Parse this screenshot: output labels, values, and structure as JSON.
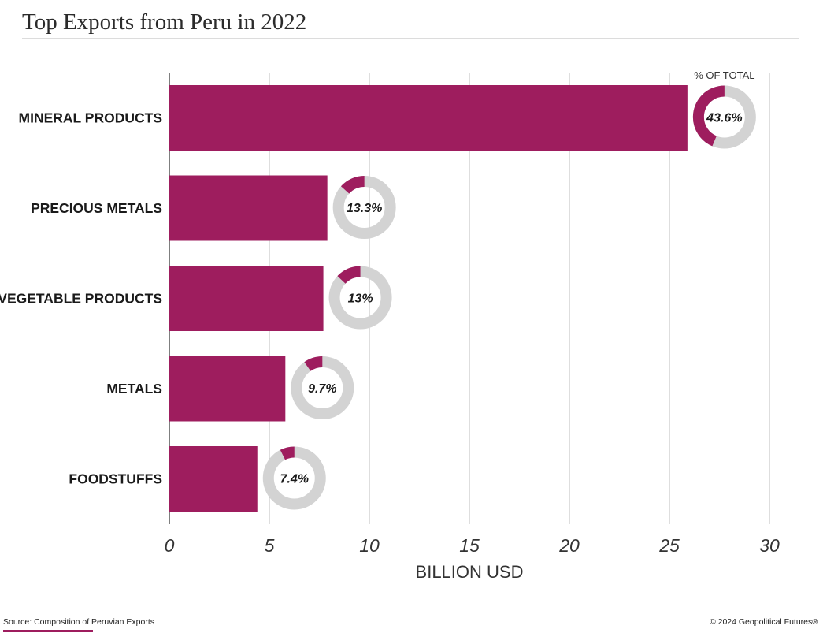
{
  "title": "Top Exports from Peru in 2022",
  "source": "Source: Composition of Peruvian Exports",
  "copyright": "© 2024 Geopolitical Futures®",
  "colors": {
    "bar": "#9e1d5e",
    "donut_track": "#d3d3d3",
    "grid": "#bdbdbd"
  },
  "chart_data": {
    "type": "bar",
    "orientation": "horizontal",
    "categories": [
      "MINERAL PRODUCTS",
      "PRECIOUS METALS",
      "VEGETABLE PRODUCTS",
      "METALS",
      "FOODSTUFFS"
    ],
    "values": [
      25.9,
      7.9,
      7.7,
      5.8,
      4.4
    ],
    "share_of_total": [
      43.6,
      13.3,
      13,
      9.7,
      7.4
    ],
    "share_labels": [
      "43.6%",
      "13.3%",
      "13%",
      "9.7%",
      "7.4%"
    ],
    "share_header": "% OF TOTAL",
    "xlabel": "BILLION USD",
    "xlim": [
      0,
      30
    ],
    "xticks": [
      0,
      5,
      10,
      15,
      20,
      25,
      30
    ],
    "grid": "vertical"
  }
}
